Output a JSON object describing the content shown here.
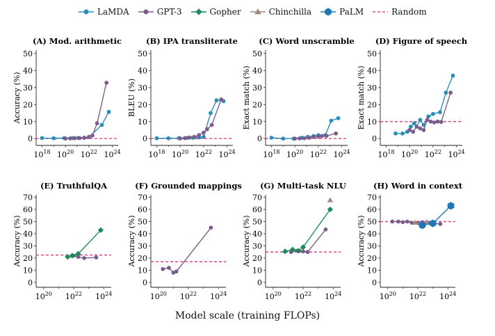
{
  "legend": [
    {
      "name": "LaMDA",
      "color": "#2a8db5",
      "marker": "circle",
      "dash": false
    },
    {
      "name": "GPT-3",
      "color": "#7b5c8c",
      "marker": "circle",
      "dash": false
    },
    {
      "name": "Gopher",
      "color": "#1e8a5a",
      "marker": "diamond",
      "dash": false
    },
    {
      "name": "Chinchilla",
      "color": "#a08a85",
      "marker": "triangle",
      "dash": false
    },
    {
      "name": "PaLM",
      "color": "#1f78b4",
      "marker": "hexagon",
      "dash": false
    },
    {
      "name": "Random",
      "color": "#e0428a",
      "marker": "none",
      "dash": true
    }
  ],
  "xlabel_global": "Model scale (training FLOPs)",
  "chart_data": [
    {
      "type": "line",
      "title": "(A) Mod. arithmetic",
      "ylabel": "Accuracy (%)",
      "xlim": [
        17.5,
        24.5
      ],
      "ylim": [
        -4,
        52
      ],
      "yticks": [
        0,
        10,
        20,
        30,
        40,
        50
      ],
      "xticks": [
        18,
        20,
        22,
        24
      ],
      "random": 0,
      "series": [
        {
          "name": "LaMDA",
          "x": [
            18.0,
            19.0,
            19.9,
            20.6,
            21.1,
            21.6,
            22.0,
            23.1,
            23.7
          ],
          "y": [
            0.3,
            0.2,
            0.3,
            0.3,
            0.4,
            0.5,
            0.8,
            8.0,
            15.7
          ]
        },
        {
          "name": "GPT-3",
          "x": [
            20.0,
            20.4,
            20.8,
            21.2,
            21.6,
            22.0,
            22.3,
            22.7,
            23.5
          ],
          "y": [
            0.0,
            0.1,
            0.2,
            0.3,
            0.5,
            1.0,
            1.8,
            9.0,
            32.8
          ]
        }
      ]
    },
    {
      "type": "line",
      "title": "(B) IPA transliterate",
      "ylabel": "BLEU (%)",
      "xlim": [
        17.5,
        24.5
      ],
      "ylim": [
        -4,
        52
      ],
      "yticks": [
        0,
        10,
        20,
        30,
        40,
        50
      ],
      "xticks": [
        18,
        20,
        22,
        24
      ],
      "random": 0,
      "series": [
        {
          "name": "LaMDA",
          "x": [
            18.0,
            19.0,
            19.9,
            20.6,
            21.1,
            21.6,
            22.0,
            22.6,
            23.1,
            23.7
          ],
          "y": [
            0.2,
            0.2,
            0.3,
            0.4,
            0.5,
            0.7,
            1.0,
            15.0,
            22.5,
            22.0
          ]
        },
        {
          "name": "GPT-3",
          "x": [
            20.0,
            20.4,
            20.8,
            21.2,
            21.6,
            22.0,
            22.3,
            22.7,
            23.5
          ],
          "y": [
            0.1,
            0.3,
            0.6,
            1.0,
            2.0,
            3.5,
            5.5,
            8.0,
            23.0
          ]
        }
      ]
    },
    {
      "type": "line",
      "title": "(C) Word unscramble",
      "ylabel": "Exact match (%)",
      "xlim": [
        17.5,
        24.5
      ],
      "ylim": [
        -4,
        52
      ],
      "yticks": [
        0,
        10,
        20,
        30,
        40,
        50
      ],
      "xticks": [
        18,
        20,
        22,
        24
      ],
      "random": 0,
      "series": [
        {
          "name": "LaMDA",
          "x": [
            18.0,
            19.0,
            19.9,
            20.6,
            21.1,
            21.6,
            22.0,
            22.6,
            23.1,
            23.7
          ],
          "y": [
            0.5,
            0.0,
            0.0,
            0.5,
            1.0,
            1.5,
            2.0,
            2.0,
            10.5,
            12.0
          ]
        },
        {
          "name": "GPT-3",
          "x": [
            20.0,
            20.4,
            20.8,
            21.2,
            21.6,
            22.0,
            22.3,
            22.7,
            23.5
          ],
          "y": [
            0.0,
            0.1,
            0.2,
            0.5,
            1.0,
            1.2,
            1.5,
            1.6,
            3.0
          ]
        }
      ]
    },
    {
      "type": "line",
      "title": "(D) Figure of speech",
      "ylabel": "Exact match (%)",
      "xlim": [
        17.5,
        24.5
      ],
      "ylim": [
        -4,
        52
      ],
      "yticks": [
        0,
        10,
        20,
        30,
        40,
        50
      ],
      "xticks": [
        18,
        20,
        22,
        24
      ],
      "random": 10,
      "series": [
        {
          "name": "LaMDA",
          "x": [
            18.8,
            19.4,
            19.8,
            20.1,
            20.4,
            20.6,
            20.9,
            21.2,
            21.6,
            22.0,
            22.6,
            23.1,
            23.7
          ],
          "y": [
            3.0,
            3.0,
            4.0,
            7.0,
            9.0,
            7.0,
            11.0,
            8.0,
            13.0,
            14.5,
            15.5,
            27.0,
            37.0
          ]
        },
        {
          "name": "GPT-3",
          "x": [
            20.0,
            20.3,
            20.6,
            20.9,
            21.2,
            21.5,
            21.8,
            22.1,
            22.4,
            22.7,
            23.5
          ],
          "y": [
            5.0,
            4.0,
            7.0,
            6.0,
            5.0,
            11.0,
            10.0,
            9.5,
            10.0,
            9.8,
            27.0
          ]
        }
      ]
    },
    {
      "type": "line",
      "title": "(E) TruthfulQA",
      "ylabel": "Accuracy (%)",
      "xlim": [
        19.5,
        24.5
      ],
      "ylim": [
        -4,
        72
      ],
      "yticks": [
        0,
        10,
        20,
        30,
        40,
        50,
        60,
        70
      ],
      "xticks": [
        20,
        22,
        24
      ],
      "random": 22.5,
      "series": [
        {
          "name": "GPT-3",
          "x": [
            21.6,
            22.0,
            22.3,
            22.7,
            23.5
          ],
          "y": [
            21.0,
            22.0,
            21.0,
            20.0,
            20.5
          ]
        },
        {
          "name": "Gopher",
          "x": [
            21.6,
            21.9,
            22.3,
            23.8
          ],
          "y": [
            21.0,
            22.0,
            23.5,
            43.0
          ]
        }
      ]
    },
    {
      "type": "line",
      "title": "(F) Grounded mappings",
      "ylabel": "Accuracy (%)",
      "xlim": [
        19.5,
        24.5
      ],
      "ylim": [
        -4,
        72
      ],
      "yticks": [
        0,
        10,
        20,
        30,
        40,
        50,
        60,
        70
      ],
      "xticks": [
        20,
        22,
        24
      ],
      "random": 17,
      "series": [
        {
          "name": "GPT-3",
          "x": [
            20.3,
            20.7,
            21.0,
            21.2,
            23.5
          ],
          "y": [
            11.0,
            12.0,
            8.0,
            9.0,
            45.0
          ]
        }
      ]
    },
    {
      "type": "line",
      "title": "(G) Multi-task NLU",
      "ylabel": "Accuracy (%)",
      "xlim": [
        19.5,
        24.5
      ],
      "ylim": [
        -4,
        72
      ],
      "yticks": [
        0,
        10,
        20,
        30,
        40,
        50,
        60,
        70
      ],
      "xticks": [
        20,
        22,
        24
      ],
      "random": 25,
      "series": [
        {
          "name": "GPT-3",
          "x": [
            21.2,
            21.6,
            22.0,
            22.3,
            23.5
          ],
          "y": [
            25.0,
            26.0,
            25.5,
            25.0,
            43.5
          ]
        },
        {
          "name": "Gopher",
          "x": [
            20.8,
            21.3,
            21.7,
            22.0,
            23.8
          ],
          "y": [
            25.5,
            27.0,
            26.0,
            29.0,
            60.0
          ]
        },
        {
          "name": "Chinchilla",
          "x": [
            23.8
          ],
          "y": [
            67.5
          ]
        }
      ]
    },
    {
      "type": "line",
      "title": "(H) Word in context",
      "ylabel": "Accuracy (%)",
      "xlim": [
        19.5,
        24.5
      ],
      "ylim": [
        -4,
        72
      ],
      "yticks": [
        0,
        10,
        20,
        30,
        40,
        50,
        60,
        70
      ],
      "xticks": [
        20,
        22,
        24
      ],
      "random": 50,
      "series": [
        {
          "name": "GPT-3",
          "x": [
            20.3,
            20.7,
            21.0,
            21.3,
            21.6,
            22.0,
            22.3,
            22.7,
            23.5
          ],
          "y": [
            50.0,
            50.0,
            49.5,
            50.0,
            49.0,
            49.0,
            49.5,
            49.0,
            48.0
          ]
        },
        {
          "name": "Chinchilla",
          "x": [
            21.8,
            22.2,
            22.6
          ],
          "y": [
            49.0,
            48.5,
            49.5
          ]
        },
        {
          "name": "PaLM",
          "x": [
            22.3,
            23.0,
            24.2
          ],
          "y": [
            47.0,
            48.5,
            63.0
          ]
        }
      ]
    }
  ]
}
